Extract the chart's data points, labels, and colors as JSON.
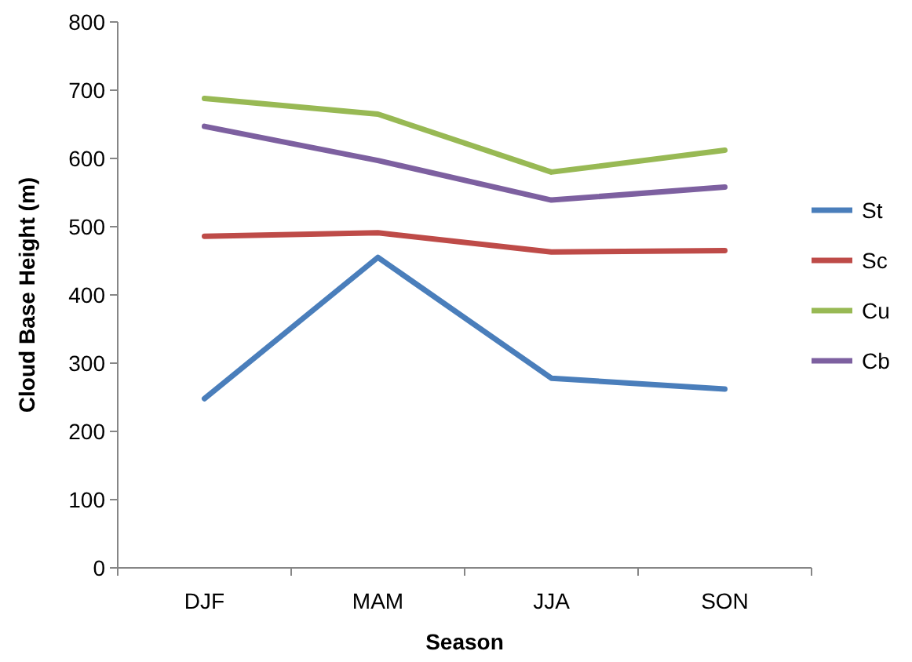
{
  "chart_data": {
    "type": "line",
    "xlabel": "Season",
    "ylabel": "Cloud Base Height (m)",
    "categories": [
      "DJF",
      "MAM",
      "JJA",
      "SON"
    ],
    "series": [
      {
        "name": "St",
        "color": "#4a7ebb",
        "values": [
          248,
          455,
          278,
          262
        ]
      },
      {
        "name": "Sc",
        "color": "#be4b48",
        "values": [
          486,
          491,
          463,
          465
        ]
      },
      {
        "name": "Cu",
        "color": "#98b954",
        "values": [
          688,
          665,
          580,
          612
        ]
      },
      {
        "name": "Cb",
        "color": "#7d60a0",
        "values": [
          647,
          597,
          539,
          558
        ]
      }
    ],
    "ylim": [
      0,
      800
    ],
    "yticks": [
      0,
      100,
      200,
      300,
      400,
      500,
      600,
      700,
      800
    ],
    "grid": false,
    "legend": "right",
    "marker": "none",
    "line_style": "solid"
  }
}
